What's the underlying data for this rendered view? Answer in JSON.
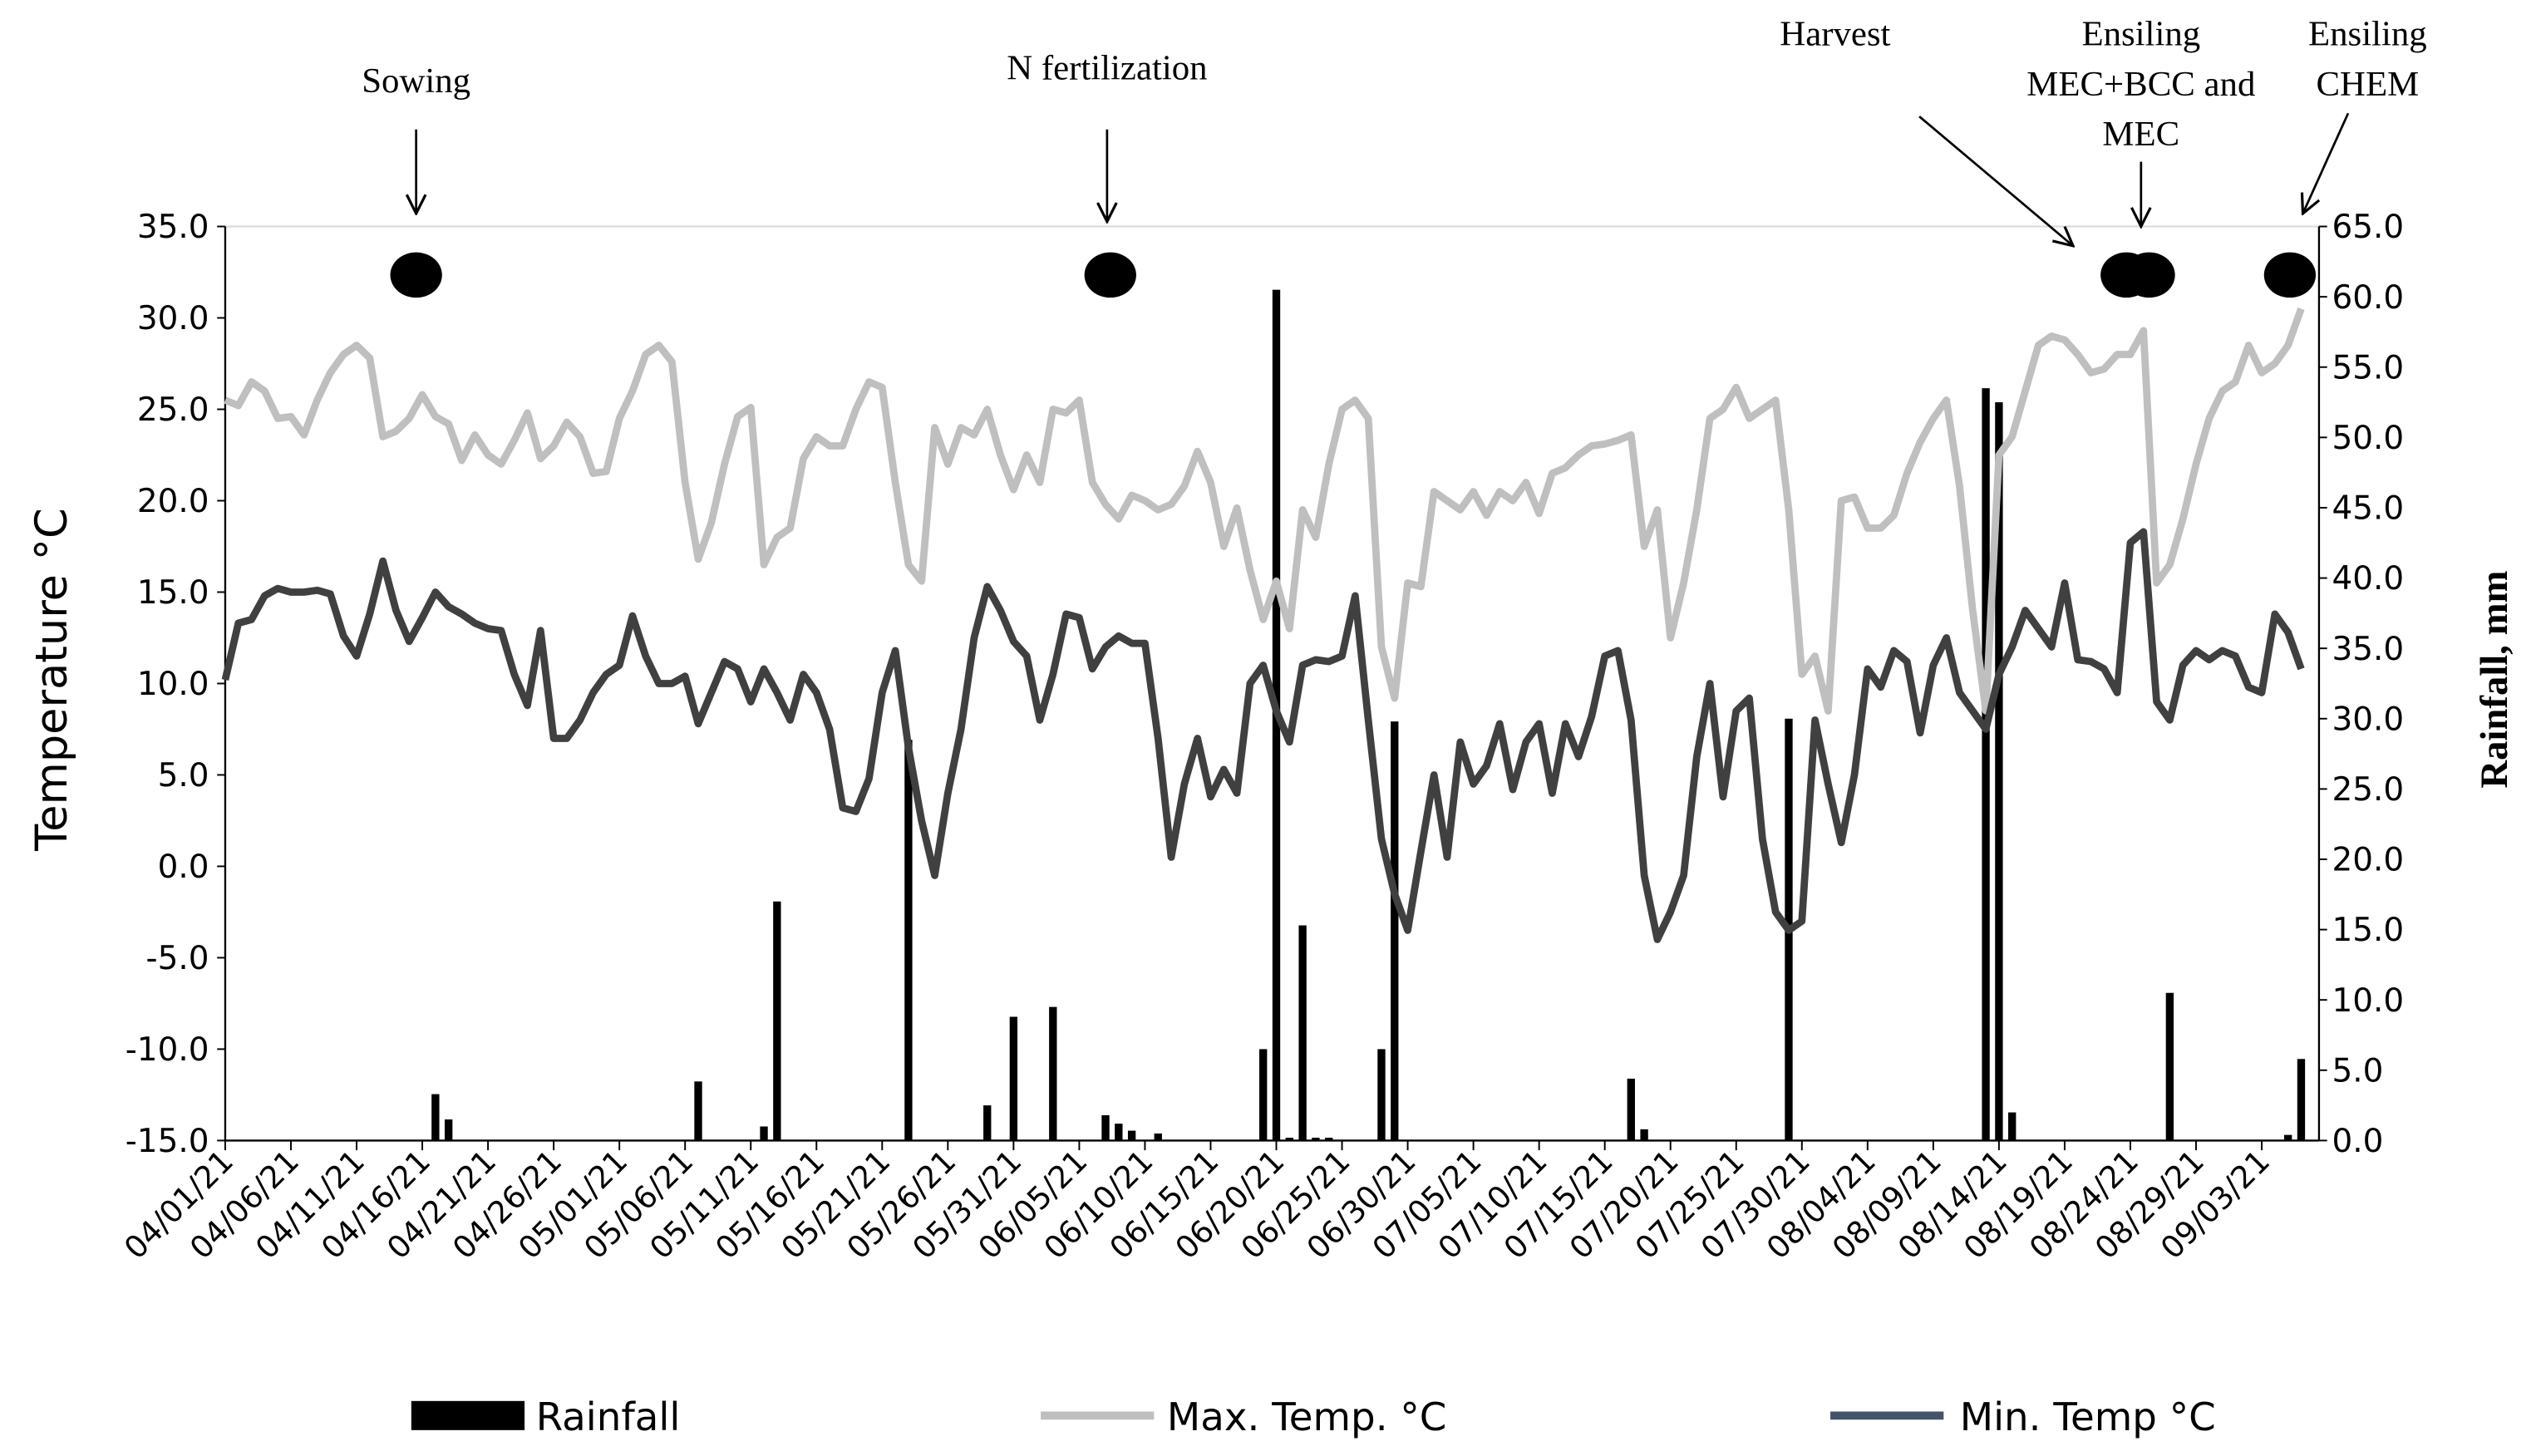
{
  "chart_data": {
    "type": "bar-line",
    "ylabel": "Temperature °C",
    "y2label": "Rainfall, mm",
    "categories": [
      "04/01/21",
      null,
      null,
      null,
      null,
      "04/06/21",
      null,
      null,
      null,
      null,
      "04/11/21",
      null,
      null,
      null,
      null,
      "04/16/21",
      null,
      null,
      null,
      null,
      "04/21/21",
      null,
      null,
      null,
      null,
      "04/26/21",
      null,
      null,
      null,
      null,
      "05/01/21",
      null,
      null,
      null,
      null,
      "05/06/21",
      null,
      null,
      null,
      null,
      "05/11/21",
      null,
      null,
      null,
      null,
      "05/16/21",
      null,
      null,
      null,
      null,
      "05/21/21",
      null,
      null,
      null,
      null,
      "05/26/21",
      null,
      null,
      null,
      null,
      "05/31/21",
      null,
      null,
      null,
      null,
      "06/05/21",
      null,
      null,
      null,
      null,
      "06/10/21",
      null,
      null,
      null,
      null,
      "06/15/21",
      null,
      null,
      null,
      null,
      "06/20/21",
      null,
      null,
      null,
      null,
      "06/25/21",
      null,
      null,
      null,
      null,
      "06/30/21",
      null,
      null,
      null,
      null,
      "07/05/21",
      null,
      null,
      null,
      null,
      "07/10/21",
      null,
      null,
      null,
      null,
      "07/15/21",
      null,
      null,
      null,
      null,
      "07/20/21",
      null,
      null,
      null,
      null,
      "07/25/21",
      null,
      null,
      null,
      null,
      "07/30/21",
      null,
      null,
      null,
      null,
      "08/04/21",
      null,
      null,
      null,
      null,
      "08/09/21",
      null,
      null,
      null,
      null,
      "08/14/21",
      null,
      null,
      null,
      null,
      "08/19/21",
      null,
      null,
      null,
      null,
      "08/24/21",
      null,
      null,
      null,
      null,
      "08/29/21",
      null,
      null,
      null,
      null,
      "09/03/21",
      null,
      null,
      null
    ],
    "series": [
      {
        "name": "Rainfall",
        "type": "bar",
        "axis": "y2",
        "color": "#000000",
        "values": [
          0,
          0,
          0,
          0,
          0,
          0,
          0,
          0,
          0,
          0,
          0,
          0,
          0,
          0,
          0,
          0,
          3.3,
          1.5,
          0,
          0,
          0,
          0,
          0,
          0,
          0,
          0,
          0,
          0,
          0,
          0,
          0,
          0,
          0,
          0,
          0,
          0,
          4.2,
          0,
          0,
          0,
          0,
          1,
          17,
          0,
          0,
          0,
          0,
          0,
          0,
          0,
          0,
          0,
          28.5,
          0,
          0,
          0,
          0,
          0,
          2.5,
          0,
          8.8,
          0,
          0,
          9.5,
          0,
          0,
          0,
          1.8,
          1.2,
          0.7,
          0,
          0.5,
          0,
          0,
          0,
          0,
          0,
          0,
          0,
          6.5,
          60.5,
          0.2,
          15.3,
          0.2,
          0.2,
          0,
          0,
          0,
          6.5,
          29.8,
          0,
          0,
          0,
          0,
          0,
          0,
          0,
          0,
          0,
          0,
          0,
          0,
          0,
          0,
          0,
          0,
          0,
          4.4,
          0.8,
          0,
          0,
          0,
          0,
          0,
          0,
          0,
          0,
          0,
          0,
          30,
          0,
          0,
          0,
          0,
          0,
          0,
          0,
          0,
          0,
          0,
          0,
          0,
          0,
          0,
          53.5,
          52.5,
          2,
          0,
          0,
          0,
          0,
          0,
          0,
          0,
          0,
          0,
          0,
          0,
          10.5,
          0,
          0,
          0,
          0,
          0,
          0,
          0,
          0,
          0.4,
          5.8
        ]
      },
      {
        "name": "Max. Temp. °C",
        "type": "line",
        "color": "#bfbfbf",
        "values": [
          25.5,
          25.2,
          26.5,
          26,
          24.5,
          24.6,
          23.6,
          25.5,
          27,
          28,
          28.5,
          27.8,
          23.5,
          23.8,
          24.5,
          25.8,
          24.6,
          24.2,
          22.2,
          23.6,
          22.5,
          22,
          23.3,
          24.8,
          22.3,
          23,
          24.3,
          23.5,
          21.5,
          21.6,
          24.5,
          26,
          28,
          28.5,
          27.6,
          21,
          16.8,
          18.8,
          22,
          24.6,
          25.1,
          16.5,
          18,
          18.5,
          22.3,
          23.5,
          23,
          23,
          25,
          26.5,
          26.2,
          21,
          16.5,
          15.6,
          24,
          22,
          24,
          23.6,
          25,
          22.5,
          20.6,
          22.5,
          21,
          25,
          24.8,
          25.5,
          21,
          19.8,
          19,
          20.3,
          20,
          19.5,
          19.8,
          20.8,
          22.7,
          21,
          17.5,
          19.6,
          16.2,
          13.5,
          15.6,
          13,
          19.5,
          18,
          22,
          25,
          25.5,
          24.5,
          12,
          9.2,
          15.5,
          15.3,
          20.5,
          20,
          19.5,
          20.5,
          19.2,
          20.5,
          20,
          21,
          19.3,
          21.5,
          21.8,
          22.5,
          23,
          23.1,
          23.3,
          23.6,
          17.5,
          19.5,
          12.5,
          15.5,
          19.5,
          24.5,
          25,
          26.2,
          24.5,
          25,
          25.5,
          19.5,
          10.5,
          11.5,
          8.5,
          20,
          20.2,
          18.5,
          18.5,
          19.2,
          21.5,
          23.2,
          24.5,
          25.5,
          20.8,
          14,
          8.5,
          22.5,
          23.5,
          26,
          28.5,
          29,
          28.8,
          28,
          27,
          27.2,
          28,
          28,
          29.3,
          15.5,
          16.5,
          19,
          22,
          24.5,
          26,
          26.5,
          28.5,
          27,
          27.5,
          28.5,
          30.5
        ]
      },
      {
        "name": "Min. Temp °C",
        "type": "line",
        "color": "#404040",
        "legend_color": "#44546a",
        "values": [
          10.2,
          13.3,
          13.5,
          14.8,
          15.2,
          15,
          15,
          15.1,
          14.9,
          12.6,
          11.5,
          13.8,
          16.7,
          14,
          12.3,
          13.6,
          15,
          14.2,
          13.8,
          13.3,
          13,
          12.9,
          10.5,
          8.8,
          12.9,
          7,
          7,
          8,
          9.5,
          10.5,
          11,
          13.7,
          11.5,
          10,
          10,
          10.4,
          7.8,
          9.5,
          11.2,
          10.8,
          9,
          10.8,
          9.5,
          8,
          10.5,
          9.5,
          7.5,
          3.2,
          3,
          4.8,
          9.5,
          11.8,
          6.5,
          2.5,
          -0.5,
          4,
          7.5,
          12.5,
          15.3,
          14,
          12.3,
          11.5,
          8,
          10.5,
          13.8,
          13.6,
          10.8,
          12,
          12.6,
          12.2,
          12.2,
          7,
          0.5,
          4.5,
          7,
          3.8,
          5.3,
          4,
          10,
          11,
          8.5,
          6.8,
          11,
          11.3,
          11.2,
          11.5,
          14.8,
          8,
          1.5,
          -1.5,
          -3.5,
          0.8,
          5,
          0.5,
          6.8,
          4.5,
          5.5,
          7.8,
          4.2,
          6.8,
          7.8,
          4,
          7.8,
          6,
          8.2,
          11.5,
          11.8,
          8,
          -0.5,
          -4,
          -2.5,
          -0.5,
          6,
          10,
          3.8,
          8.5,
          9.2,
          1.5,
          -2.5,
          -3.5,
          -3,
          8,
          4.5,
          1.3,
          5,
          10.8,
          9.8,
          11.8,
          11.2,
          7.3,
          11,
          12.5,
          9.5,
          8.5,
          7.5,
          10.5,
          12,
          14,
          13,
          12,
          15.5,
          11.3,
          11.2,
          10.8,
          9.5,
          17.7,
          18.3,
          9,
          8,
          11,
          11.8,
          11.3,
          11.8,
          11.5,
          9.8,
          9.5,
          13.8,
          12.8,
          10.8
        ]
      }
    ],
    "ylim": [
      -15,
      35
    ],
    "yticks": [
      {
        "value": -15,
        "label": "-15.0"
      },
      {
        "value": -10,
        "label": "-10.0"
      },
      {
        "value": -5,
        "label": "-5.0"
      },
      {
        "value": 0,
        "label": "0.0"
      },
      {
        "value": 5,
        "label": "5.0"
      },
      {
        "value": 10,
        "label": "10.0"
      },
      {
        "value": 15,
        "label": "15.0"
      },
      {
        "value": 20,
        "label": "20.0"
      },
      {
        "value": 25,
        "label": "25.0"
      },
      {
        "value": 30,
        "label": "30.0"
      },
      {
        "value": 35,
        "label": "35.0"
      }
    ],
    "y2lim": [
      0,
      65
    ],
    "y2ticks": [
      {
        "value": 0,
        "label": "0.0"
      },
      {
        "value": 5,
        "label": "5.0"
      },
      {
        "value": 10,
        "label": "10.0"
      },
      {
        "value": 15,
        "label": "15.0"
      },
      {
        "value": 20,
        "label": "20.0"
      },
      {
        "value": 25,
        "label": "25.0"
      },
      {
        "value": 30,
        "label": "30.0"
      },
      {
        "value": 35,
        "label": "35.0"
      },
      {
        "value": 40,
        "label": "40.0"
      },
      {
        "value": 45,
        "label": "45.0"
      },
      {
        "value": 50,
        "label": "50.0"
      },
      {
        "value": 55,
        "label": "55.0"
      },
      {
        "value": 60,
        "label": "60.0"
      },
      {
        "value": 65,
        "label": "65.0"
      }
    ],
    "annotations": [
      [
        "Sowing"
      ],
      [
        "N fertilization"
      ],
      [
        "Harvest"
      ],
      [
        "Ensiling",
        "MEC+BCC and",
        "MEC"
      ],
      [
        "Ensiling",
        "CHEM"
      ]
    ],
    "legend": "bottom"
  }
}
